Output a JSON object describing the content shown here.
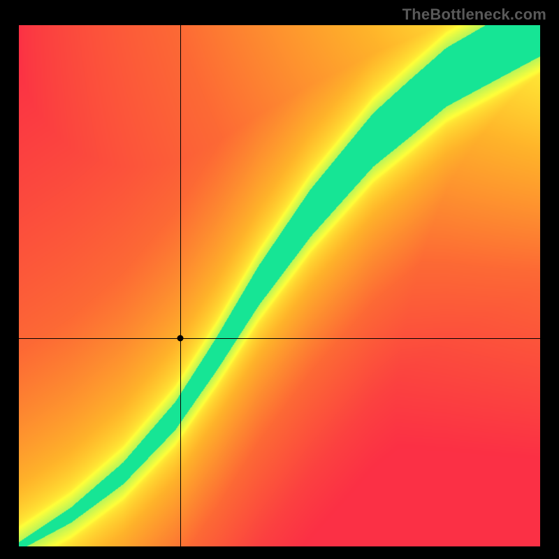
{
  "watermark": "TheBottleneck.com",
  "heatmap": {
    "type": "heatmap",
    "canvas_size": 746,
    "background_color": "#000000",
    "watermark_color": "#595959",
    "watermark_fontsize": 22,
    "crosshair_color": "#000000",
    "marker_color": "#000000",
    "marker_radius": 4.5,
    "marker_xy_norm": [
      0.31,
      0.4
    ],
    "domain": {
      "xmin": 0,
      "xmax": 1,
      "ymin": 0,
      "ymax": 1
    },
    "band": {
      "comment": "Green optimal band: y center as function of x (normalized, origin bottom-left). Piecewise-linear control points.",
      "center_pts": [
        [
          0.0,
          0.0
        ],
        [
          0.1,
          0.06
        ],
        [
          0.2,
          0.14
        ],
        [
          0.3,
          0.25
        ],
        [
          0.38,
          0.37
        ],
        [
          0.46,
          0.5
        ],
        [
          0.56,
          0.64
        ],
        [
          0.68,
          0.78
        ],
        [
          0.82,
          0.9
        ],
        [
          1.0,
          1.0
        ]
      ],
      "halfwidth_pts": [
        [
          0.0,
          0.008
        ],
        [
          0.15,
          0.018
        ],
        [
          0.35,
          0.03
        ],
        [
          0.55,
          0.045
        ],
        [
          0.75,
          0.055
        ],
        [
          1.0,
          0.06
        ]
      ],
      "yellow_halo_extra": 0.03
    },
    "background_field": {
      "comment": "Corner colors for bilinear-ish background field (approximated via radial scoring)",
      "corner_colors": {
        "bottom_left": "#fb3045",
        "bottom_right": "#fb3045",
        "top_left": "#fb3045",
        "top_right": "#ffff3a"
      }
    },
    "palette": {
      "comment": "Stops along the score axis 0..1",
      "stops": [
        {
          "t": 0.0,
          "hex": "#fb3045"
        },
        {
          "t": 0.35,
          "hex": "#fd6a35"
        },
        {
          "t": 0.6,
          "hex": "#ffb42a"
        },
        {
          "t": 0.8,
          "hex": "#ffff3a"
        },
        {
          "t": 0.93,
          "hex": "#b8f55a"
        },
        {
          "t": 1.0,
          "hex": "#16e595"
        }
      ]
    }
  }
}
